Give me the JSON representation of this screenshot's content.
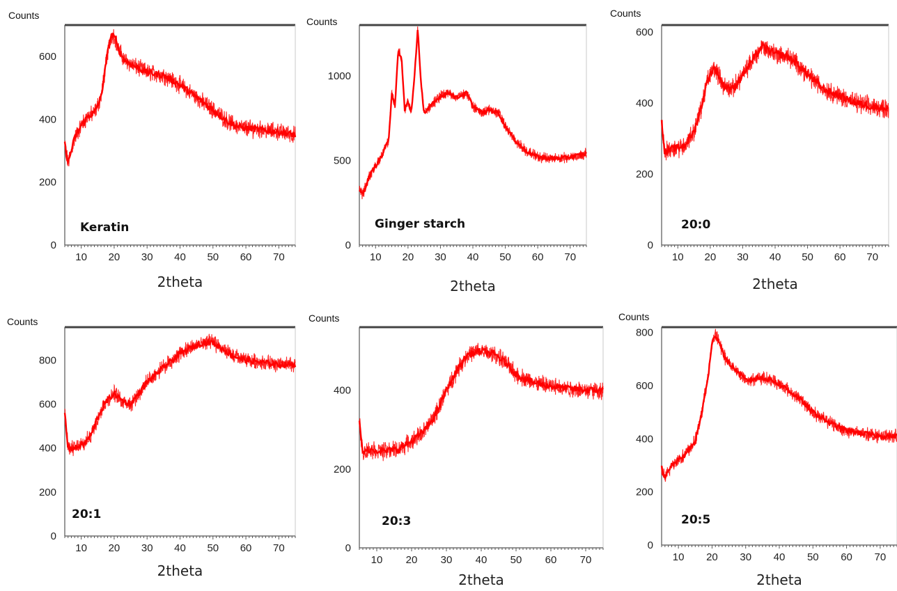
{
  "chart_data": [
    {
      "type": "line",
      "ylabel": "Counts",
      "xlabel": "2theta",
      "panel_label": "Keratin",
      "xlim": [
        5,
        75
      ],
      "ylim": [
        0,
        700
      ],
      "xticks": [
        10,
        20,
        30,
        40,
        50,
        60,
        70
      ],
      "yticks": [
        0,
        200,
        400,
        600
      ],
      "series": [
        {
          "color": "#ff0000",
          "noise": 22,
          "x": [
            5,
            6,
            8,
            10,
            12,
            14,
            16,
            18,
            19,
            20,
            21,
            23,
            26,
            30,
            35,
            40,
            45,
            50,
            55,
            58,
            62,
            66,
            70,
            75
          ],
          "y": [
            320,
            260,
            340,
            380,
            410,
            420,
            470,
            610,
            665,
            670,
            630,
            590,
            570,
            550,
            540,
            510,
            470,
            430,
            390,
            375,
            370,
            365,
            360,
            350
          ]
        }
      ]
    },
    {
      "type": "line",
      "ylabel": "Counts",
      "xlabel": "2theta",
      "panel_label": "Ginger starch",
      "xlim": [
        5,
        75
      ],
      "ylim": [
        0,
        1300
      ],
      "xticks": [
        10,
        20,
        30,
        40,
        50,
        60,
        70
      ],
      "yticks": [
        0,
        500,
        1000
      ],
      "series": [
        {
          "color": "#ff0000",
          "noise": 25,
          "x": [
            5,
            6,
            8,
            10,
            12,
            14,
            15,
            16,
            17,
            18,
            19,
            20,
            21,
            22,
            23,
            24,
            25,
            27,
            30,
            33,
            35,
            38,
            40,
            43,
            45,
            48,
            50,
            53,
            56,
            60,
            65,
            70,
            75
          ],
          "y": [
            320,
            300,
            400,
            470,
            530,
            620,
            900,
            820,
            1150,
            1100,
            800,
            850,
            780,
            1000,
            1280,
            950,
            780,
            820,
            880,
            900,
            870,
            900,
            820,
            780,
            800,
            780,
            700,
            620,
            560,
            520,
            510,
            520,
            540
          ]
        }
      ]
    },
    {
      "type": "line",
      "ylabel": "Counts",
      "xlabel": "2theta",
      "panel_label": "20:0",
      "xlim": [
        5,
        75
      ],
      "ylim": [
        0,
        620
      ],
      "xticks": [
        10,
        20,
        30,
        40,
        50,
        60,
        70
      ],
      "yticks": [
        0,
        200,
        400,
        600
      ],
      "series": [
        {
          "color": "#ff0000",
          "noise": 22,
          "x": [
            5,
            6,
            8,
            12,
            15,
            17,
            19,
            21,
            22,
            24,
            27,
            30,
            33,
            36,
            40,
            44,
            47,
            50,
            55,
            60,
            65,
            70,
            75
          ],
          "y": [
            350,
            260,
            270,
            280,
            320,
            380,
            460,
            500,
            490,
            450,
            440,
            480,
            520,
            560,
            540,
            530,
            510,
            480,
            440,
            420,
            400,
            390,
            385
          ]
        }
      ]
    },
    {
      "type": "line",
      "ylabel": "Counts",
      "xlabel": "2theta",
      "panel_label": "20:1",
      "xlim": [
        5,
        75
      ],
      "ylim": [
        0,
        950
      ],
      "xticks": [
        10,
        20,
        30,
        40,
        50,
        60,
        70
      ],
      "yticks": [
        0,
        200,
        400,
        600,
        800
      ],
      "series": [
        {
          "color": "#ff0000",
          "noise": 28,
          "x": [
            5,
            6,
            8,
            11,
            13,
            15,
            17,
            20,
            22,
            25,
            28,
            30,
            33,
            36,
            40,
            44,
            47,
            50,
            53,
            56,
            60,
            65,
            70,
            75
          ],
          "y": [
            560,
            400,
            400,
            420,
            460,
            540,
            600,
            650,
            620,
            600,
            660,
            700,
            740,
            780,
            830,
            860,
            880,
            880,
            850,
            820,
            800,
            790,
            780,
            780
          ]
        }
      ]
    },
    {
      "type": "line",
      "ylabel": "Counts",
      "xlabel": "2theta",
      "panel_label": "20:3",
      "xlim": [
        5,
        75
      ],
      "ylim": [
        0,
        560
      ],
      "xticks": [
        10,
        20,
        30,
        40,
        50,
        60,
        70
      ],
      "yticks": [
        0,
        200,
        400
      ],
      "series": [
        {
          "color": "#ff0000",
          "noise": 18,
          "x": [
            5,
            6,
            8,
            12,
            16,
            20,
            24,
            27,
            30,
            33,
            36,
            40,
            44,
            47,
            50,
            55,
            60,
            65,
            70,
            75
          ],
          "y": [
            320,
            240,
            250,
            245,
            250,
            270,
            300,
            340,
            400,
            450,
            490,
            500,
            490,
            470,
            440,
            420,
            410,
            405,
            400,
            400
          ]
        }
      ]
    },
    {
      "type": "line",
      "ylabel": "Counts",
      "xlabel": "2theta",
      "panel_label": "20:5",
      "xlim": [
        5,
        75
      ],
      "ylim": [
        0,
        820
      ],
      "xticks": [
        10,
        20,
        30,
        40,
        50,
        60,
        70
      ],
      "yticks": [
        0,
        200,
        400,
        600,
        800
      ],
      "series": [
        {
          "color": "#ff0000",
          "noise": 20,
          "x": [
            5,
            6,
            8,
            12,
            15,
            17,
            19,
            20,
            21,
            22,
            24,
            27,
            30,
            35,
            38,
            42,
            46,
            50,
            55,
            60,
            65,
            70,
            75
          ],
          "y": [
            290,
            250,
            300,
            340,
            390,
            500,
            650,
            760,
            790,
            770,
            700,
            660,
            620,
            630,
            620,
            590,
            550,
            500,
            460,
            430,
            420,
            410,
            410
          ]
        }
      ]
    }
  ]
}
